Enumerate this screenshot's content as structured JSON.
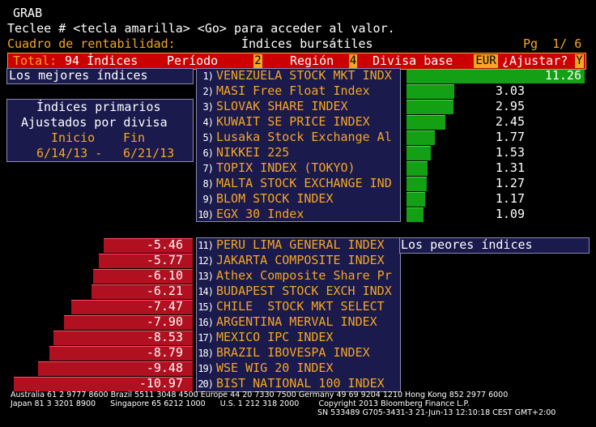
{
  "app": {
    "title": "GRAB"
  },
  "instruction": "Teclee # <tecla amarilla> <Go> para acceder al valor.",
  "subheader": {
    "left": "Cuadro de rentabilidad:",
    "center": "Índices bursátiles",
    "page": "Pg  1/ 6"
  },
  "toolbar": {
    "total_label": "Total:",
    "total_value": "94 Índices",
    "period_label": "Período",
    "period_value": "2",
    "region_label": "Región",
    "region_value": "4",
    "currency_label": "Divisa base",
    "currency_value": "EUR",
    "adjust_label": "¿Ajustar?",
    "adjust_value": "Y"
  },
  "best_label": "Los mejores índices",
  "worst_label": "Los peores índices",
  "info": {
    "line1": "Índices primarios",
    "line2": "Ajustados por divisa",
    "start_label": "Inicio",
    "end_label": "Fin",
    "start_date": "6/14/13 -",
    "end_date": "6/21/13"
  },
  "best": [
    {
      "num": "1)",
      "name": "VENEZUELA STOCK MKT INDX",
      "value": "11.26",
      "v": 11.26
    },
    {
      "num": "2)",
      "name": "MASI Free Float Index",
      "value": "3.03",
      "v": 3.03
    },
    {
      "num": "3)",
      "name": "SLOVAK SHARE INDEX",
      "value": "2.95",
      "v": 2.95
    },
    {
      "num": "4)",
      "name": "KUWAIT SE PRICE INDEX",
      "value": "2.45",
      "v": 2.45
    },
    {
      "num": "5)",
      "name": "Lusaka Stock Exchange Al",
      "value": "1.77",
      "v": 1.77
    },
    {
      "num": "6)",
      "name": "NIKKEI 225",
      "value": "1.53",
      "v": 1.53
    },
    {
      "num": "7)",
      "name": "TOPIX INDEX (TOKYO)",
      "value": "1.31",
      "v": 1.31
    },
    {
      "num": "8)",
      "name": "MALTA STOCK EXCHANGE IND",
      "value": "1.27",
      "v": 1.27
    },
    {
      "num": "9)",
      "name": "BLOM STOCK INDEX",
      "value": "1.17",
      "v": 1.17
    },
    {
      "num": "10)",
      "name": "EGX 30 Index",
      "value": "1.09",
      "v": 1.09
    }
  ],
  "worst": [
    {
      "num": "11)",
      "name": "PERU LIMA GENERAL INDEX",
      "value": "-5.46",
      "v": -5.46
    },
    {
      "num": "12)",
      "name": "JAKARTA COMPOSITE INDEX",
      "value": "-5.77",
      "v": -5.77
    },
    {
      "num": "13)",
      "name": "Athex Composite Share Pr",
      "value": "-6.10",
      "v": -6.1
    },
    {
      "num": "14)",
      "name": "BUDAPEST STOCK EXCH INDX",
      "value": "-6.21",
      "v": -6.21
    },
    {
      "num": "15)",
      "name": "CHILE  STOCK MKT SELECT",
      "value": "-7.47",
      "v": -7.47
    },
    {
      "num": "16)",
      "name": "ARGENTINA MERVAL INDEX",
      "value": "-7.90",
      "v": -7.9
    },
    {
      "num": "17)",
      "name": "MEXICO IPC INDEX",
      "value": "-8.53",
      "v": -8.53
    },
    {
      "num": "18)",
      "name": "BRAZIL IBOVESPA INDEX",
      "value": "-8.79",
      "v": -8.79
    },
    {
      "num": "19)",
      "name": "WSE WIG 20 INDEX",
      "value": "-9.48",
      "v": -9.48
    },
    {
      "num": "20)",
      "name": "BIST NATIONAL 100 INDEX",
      "value": "-10.97",
      "v": -10.97
    }
  ],
  "footer": {
    "line1": "Australia 61 2 9777 8600 Brazil 5511 3048 4500 Europe 44 20 7330 7500 Germany 49 69 9204 1210 Hong Kong 852 2977 6000",
    "line2": "Japan 81 3 3201 8900      Singapore 65 6212 1000      U.S. 1 212 318 2000        Copyright 2013 Bloomberg Finance L.P.",
    "line3": "SN 533489 G705-3431-3 21-Jun-13 12:10:18 CEST GMT+2:00"
  },
  "colors": {
    "orange": "#f5a623",
    "red": "#c00000",
    "green": "#14a014",
    "navy": "#1a1a4d"
  }
}
